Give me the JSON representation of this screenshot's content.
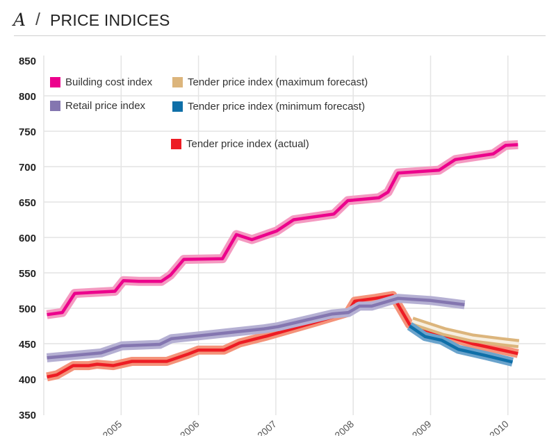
{
  "header": {
    "letter": "A",
    "separator": "/",
    "title": "PRICE INDICES"
  },
  "chart_data": {
    "type": "line",
    "title": "PRICE INDICES",
    "xlabel": "",
    "ylabel": "",
    "xlim": [
      2004,
      2010.5
    ],
    "ylim": [
      350,
      850
    ],
    "yticks": [
      "350",
      "400",
      "450",
      "500",
      "550",
      "600",
      "650",
      "700",
      "750",
      "800",
      "850"
    ],
    "xticks": [
      "2005",
      "2006",
      "2007",
      "2008",
      "2009",
      "2010"
    ],
    "grid": true,
    "legend_placement": "top-left",
    "series": [
      {
        "name": "Tender price index (actual)",
        "color": "#ed1c24",
        "halo": "#f4937a",
        "core": "#ed1c24",
        "points": [
          [
            2004.04,
            403
          ],
          [
            2004.17,
            406
          ],
          [
            2004.38,
            419
          ],
          [
            2004.58,
            419
          ],
          [
            2004.69,
            421
          ],
          [
            2004.9,
            419
          ],
          [
            2005.14,
            425
          ],
          [
            2005.59,
            425
          ],
          [
            2005.86,
            435
          ],
          [
            2006.0,
            441
          ],
          [
            2006.33,
            441
          ],
          [
            2006.53,
            451
          ],
          [
            2006.89,
            461
          ],
          [
            2007.5,
            480
          ],
          [
            2007.93,
            494
          ],
          [
            2008.02,
            510
          ],
          [
            2008.29,
            514
          ],
          [
            2008.51,
            518
          ],
          [
            2008.73,
            477
          ],
          [
            2008.91,
            470
          ],
          [
            2009.54,
            450
          ],
          [
            2010.13,
            436
          ]
        ]
      },
      {
        "name": "Tender price index (maximum forecast)",
        "color": "#dcb57c",
        "halo": "#dcb57c",
        "core": "#f7efe0",
        "points": [
          [
            2008.76,
            482
          ],
          [
            2009.18,
            467
          ],
          [
            2009.54,
            458
          ],
          [
            2009.9,
            453
          ],
          [
            2010.14,
            450
          ]
        ]
      },
      {
        "name": "Tender price index (minimum forecast)",
        "color": "#0f6fa8",
        "halo": "#6aa3cc",
        "core": "#0f6fa8",
        "points": [
          [
            2008.73,
            475
          ],
          [
            2008.93,
            460
          ],
          [
            2009.14,
            455
          ],
          [
            2009.36,
            442
          ],
          [
            2009.72,
            433
          ],
          [
            2010.06,
            424
          ]
        ]
      },
      {
        "name": "Building cost index",
        "color": "#ec008c",
        "halo": "#f49ac1",
        "core": "#ec008c",
        "points": [
          [
            2004.04,
            491
          ],
          [
            2004.24,
            494
          ],
          [
            2004.4,
            521
          ],
          [
            2004.92,
            524
          ],
          [
            2005.03,
            539
          ],
          [
            2005.23,
            538
          ],
          [
            2005.52,
            538
          ],
          [
            2005.64,
            547
          ],
          [
            2005.81,
            569
          ],
          [
            2006.31,
            570
          ],
          [
            2006.49,
            604
          ],
          [
            2006.69,
            597
          ],
          [
            2007.01,
            609
          ],
          [
            2007.23,
            625
          ],
          [
            2007.75,
            633
          ],
          [
            2007.93,
            652
          ],
          [
            2008.33,
            656
          ],
          [
            2008.45,
            664
          ],
          [
            2008.58,
            691
          ],
          [
            2009.11,
            695
          ],
          [
            2009.32,
            710
          ],
          [
            2009.81,
            718
          ],
          [
            2009.97,
            730
          ],
          [
            2010.13,
            731
          ]
        ]
      },
      {
        "name": "Retail price index",
        "color": "#8476b0",
        "halo": "#b5b0d3",
        "core": "#8476b0",
        "points": [
          [
            2004.04,
            430
          ],
          [
            2004.74,
            437
          ],
          [
            2005.01,
            447
          ],
          [
            2005.5,
            449
          ],
          [
            2005.65,
            457
          ],
          [
            2006.0,
            461
          ],
          [
            2006.85,
            471
          ],
          [
            2007.03,
            474
          ],
          [
            2007.73,
            492
          ],
          [
            2007.94,
            494
          ],
          [
            2008.08,
            503
          ],
          [
            2008.24,
            503
          ],
          [
            2008.58,
            514
          ],
          [
            2009.0,
            511
          ],
          [
            2009.44,
            505
          ]
        ]
      }
    ],
    "legend": [
      {
        "label": "Building cost index",
        "color": "#ec008c"
      },
      {
        "label": "Retail price index",
        "color": "#8476b0"
      },
      {
        "label": "Tender price index (maximum forecast)",
        "color": "#dcb57c"
      },
      {
        "label": "Tender price index (minimum forecast)",
        "color": "#0f6fa8"
      },
      {
        "label": "Tender price index (actual)",
        "color": "#ed1c24"
      }
    ]
  }
}
